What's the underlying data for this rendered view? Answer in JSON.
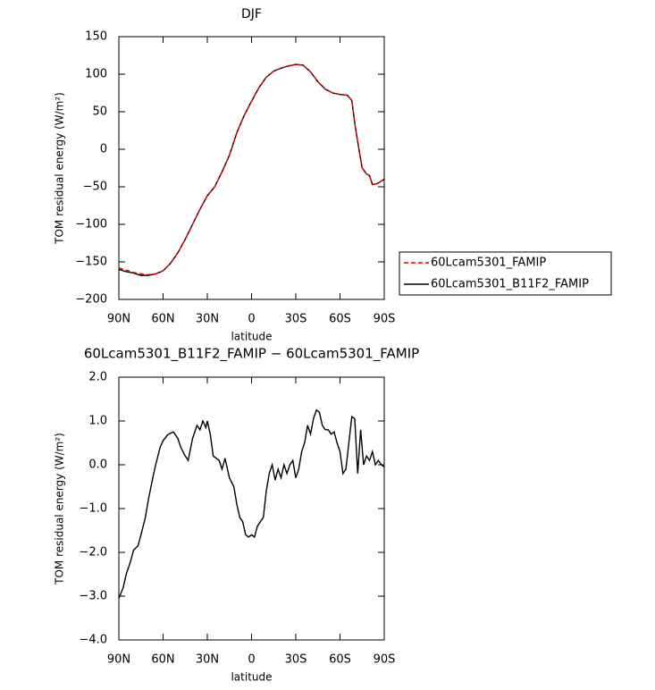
{
  "chart_data": [
    {
      "type": "line",
      "title": "DJF",
      "x_label": "latitude",
      "y_label": "TOM residual energy (W/m²)",
      "x": [
        90,
        85,
        80,
        75,
        70,
        65,
        60,
        55,
        50,
        45,
        40,
        35,
        30,
        25,
        20,
        15,
        10,
        5,
        0,
        -5,
        -10,
        -15,
        -20,
        -25,
        -30,
        -35,
        -40,
        -45,
        -50,
        -55,
        -60,
        -65,
        -68,
        -70,
        -72,
        -75,
        -78,
        -80,
        -82,
        -85,
        -90
      ],
      "series": [
        {
          "name": "60Lcam5301_FAMIP",
          "color": "#e00000",
          "dash": true,
          "values": [
            -158,
            -161,
            -164,
            -166,
            -167,
            -166,
            -162,
            -152,
            -138,
            -120,
            -100,
            -80,
            -62,
            -50,
            -30,
            -8,
            22,
            45,
            64,
            82,
            96,
            104,
            108,
            111,
            113,
            112,
            103,
            90,
            80,
            75,
            73,
            72,
            65,
            35,
            10,
            -25,
            -33,
            -35,
            -47,
            -46,
            -40
          ]
        },
        {
          "name": "60Lcam5301_B11F2_FAMIP",
          "color": "#000000",
          "dash": false,
          "values": [
            -160,
            -163,
            -165,
            -168,
            -168,
            -166,
            -162,
            -152,
            -138,
            -120,
            -100,
            -80,
            -62,
            -50,
            -30,
            -8,
            22,
            45,
            64,
            82,
            96,
            104,
            108,
            111,
            113,
            112,
            103,
            90,
            80,
            75,
            73,
            72,
            65,
            35,
            10,
            -25,
            -33,
            -35,
            -47,
            -46,
            -40
          ]
        }
      ],
      "xlim": [
        90,
        -90
      ],
      "xticks": [
        {
          "value": 90,
          "label": "90N"
        },
        {
          "value": 60,
          "label": "60N"
        },
        {
          "value": 30,
          "label": "30N"
        },
        0,
        {
          "value": -30,
          "label": "30S"
        },
        {
          "value": -60,
          "label": "60S"
        },
        {
          "value": -90,
          "label": "90S"
        }
      ],
      "ylim": [
        -200,
        150
      ],
      "yticks": [
        {
          "value": -200,
          "label": "−200"
        },
        {
          "value": -150,
          "label": "−150"
        },
        {
          "value": -100,
          "label": "−100"
        },
        {
          "value": -50,
          "label": "−50"
        },
        0,
        50,
        100,
        150
      ],
      "legend": "right"
    },
    {
      "type": "line",
      "title": "60Lcam5301_B11F2_FAMIP − 60Lcam5301_FAMIP",
      "x_label": "latitude",
      "y_label": "TOM residual energy (W/m²)",
      "x": [
        90,
        87,
        85,
        82,
        80,
        77,
        75,
        72,
        70,
        67,
        65,
        62,
        60,
        57,
        55,
        53,
        50,
        48,
        45,
        43,
        40,
        37,
        35,
        33,
        31,
        30,
        28,
        26,
        24,
        22,
        20,
        18,
        15,
        12,
        10,
        8,
        6,
        4,
        2,
        0,
        -2,
        -4,
        -6,
        -8,
        -10,
        -12,
        -14,
        -16,
        -18,
        -20,
        -22,
        -24,
        -26,
        -28,
        -30,
        -32,
        -34,
        -36,
        -38,
        -40,
        -42,
        -44,
        -46,
        -48,
        -50,
        -52,
        -54,
        -56,
        -58,
        -60,
        -62,
        -64,
        -66,
        -68,
        -70,
        -72,
        -74,
        -76,
        -78,
        -80,
        -82,
        -84,
        -86,
        -88,
        -90
      ],
      "series": [
        {
          "name": "60Lcam5301_B11F2_FAMIP − 60Lcam5301_FAMIP",
          "color": "#000000",
          "dash": false,
          "values": [
            -3.05,
            -2.8,
            -2.5,
            -2.2,
            -1.95,
            -1.85,
            -1.6,
            -1.2,
            -0.8,
            -0.3,
            0.0,
            0.4,
            0.55,
            0.68,
            0.72,
            0.75,
            0.6,
            0.4,
            0.2,
            0.1,
            0.6,
            0.9,
            0.8,
            1.0,
            0.85,
            1.0,
            0.7,
            0.2,
            0.15,
            0.1,
            -0.1,
            0.15,
            -0.3,
            -0.5,
            -0.9,
            -1.2,
            -1.3,
            -1.6,
            -1.65,
            -1.6,
            -1.65,
            -1.4,
            -1.3,
            -1.2,
            -0.6,
            -0.2,
            0.0,
            -0.35,
            -0.1,
            -0.3,
            0.0,
            -0.2,
            0.0,
            0.1,
            -0.3,
            -0.1,
            0.3,
            0.5,
            0.9,
            0.7,
            1.05,
            1.25,
            1.2,
            0.9,
            0.8,
            0.8,
            0.7,
            0.75,
            0.5,
            0.3,
            -0.2,
            -0.1,
            0.5,
            1.1,
            1.05,
            -0.2,
            0.8,
            0.0,
            0.2,
            0.1,
            0.3,
            0.0,
            0.1,
            0.0,
            -0.05
          ]
        }
      ],
      "xlim": [
        90,
        -90
      ],
      "xticks": [
        {
          "value": 90,
          "label": "90N"
        },
        {
          "value": 60,
          "label": "60N"
        },
        {
          "value": 30,
          "label": "30N"
        },
        0,
        {
          "value": -30,
          "label": "30S"
        },
        {
          "value": -60,
          "label": "60S"
        },
        {
          "value": -90,
          "label": "90S"
        }
      ],
      "ylim": [
        -4,
        2
      ],
      "yticks": [
        {
          "value": -4,
          "label": "−4.0"
        },
        {
          "value": -3,
          "label": "−3.0"
        },
        {
          "value": -2,
          "label": "−2.0"
        },
        {
          "value": -1,
          "label": "−1.0"
        },
        {
          "value": 0,
          "label": "0.0"
        },
        {
          "value": 1,
          "label": "1.0"
        },
        {
          "value": 2,
          "label": "2.0"
        }
      ]
    }
  ]
}
